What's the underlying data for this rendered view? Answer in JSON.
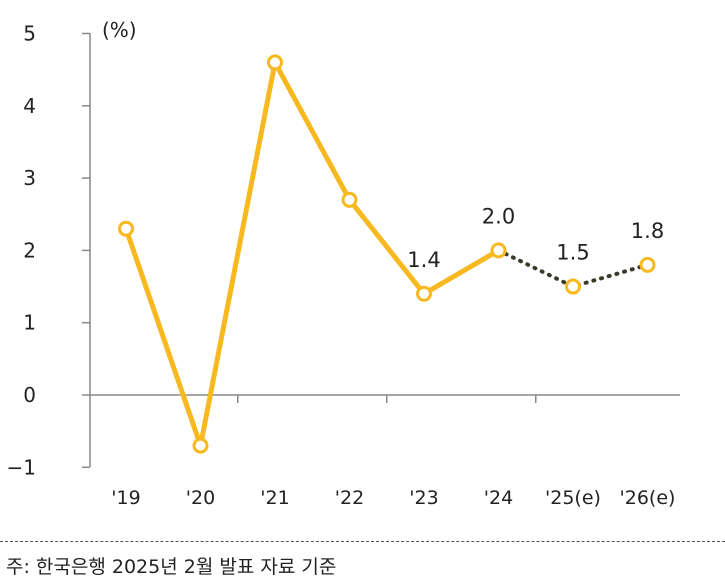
{
  "chart_data": {
    "type": "line",
    "ylabel": "(%)",
    "ylim": [
      -1,
      5
    ],
    "yticks": [
      "5",
      "4",
      "3",
      "2",
      "1",
      "0",
      "−1"
    ],
    "categories": [
      "'19",
      "'20",
      "'21",
      "'22",
      "'23",
      "'24",
      "'25(e)",
      "'26(e)"
    ],
    "values": [
      2.3,
      -0.7,
      4.6,
      2.7,
      1.4,
      2.0,
      1.5,
      1.8
    ],
    "estimate_from_index": 5,
    "data_labels": {
      "4": "1.4",
      "5": "2.0",
      "6": "1.5",
      "7": "1.8"
    },
    "line_color": "#F8B820",
    "estimate_line_color": "#3A3A2A",
    "marker_fill": "#FFFFFF",
    "grid": false,
    "legend": "none"
  },
  "footnote": "주: 한국은행 2025년 2월 발표 자료 기준"
}
